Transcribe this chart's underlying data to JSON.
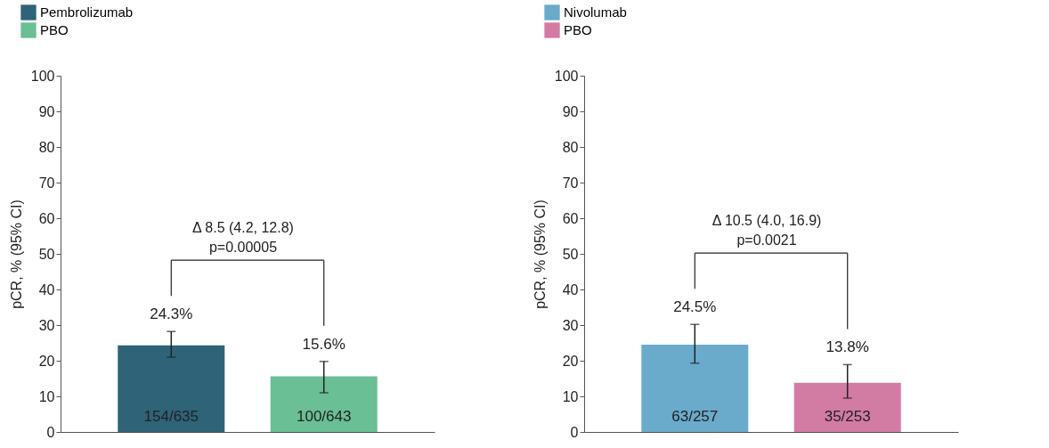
{
  "chart_data": [
    {
      "type": "bar",
      "categories": [
        null,
        null
      ],
      "ylabel": "pCR, % (95% CI)",
      "ylim": [
        0,
        100
      ],
      "yticks": [
        0,
        10,
        20,
        30,
        40,
        50,
        60,
        70,
        80,
        90,
        100
      ],
      "grid": false,
      "legend": "top left",
      "tick_labels": "y",
      "series": [
        {
          "name": "Pembrolizumab",
          "color": "#2e6378",
          "values": [
            24.3,
            null
          ],
          "errors": [
            [
              21.0,
              28.2
            ],
            null
          ],
          "value_labels": [
            "24.3%",
            null
          ]
        },
        {
          "name": "PBO",
          "color": "#6abf94",
          "values": [
            null,
            15.6
          ],
          "errors": [
            null,
            [
              11.0,
              19.8
            ]
          ],
          "value_labels": [
            null,
            "15.6%"
          ]
        }
      ],
      "annotations": [
        "Δ 8.5 (4.2, 12.8)",
        "p=0.00005",
        "154/635",
        "100/643"
      ]
    },
    {
      "type": "bar",
      "categories": [
        null,
        null
      ],
      "ylabel": "pCR, % (95% CI)",
      "ylim": [
        0,
        100
      ],
      "yticks": [
        0,
        10,
        20,
        30,
        40,
        50,
        60,
        70,
        80,
        90,
        100
      ],
      "grid": false,
      "legend": "top left",
      "tick_labels": "y",
      "series": [
        {
          "name": "Nivolumab",
          "color": "#6aaacb",
          "values": [
            24.5,
            null
          ],
          "errors": [
            [
              19.3,
              30.2
            ],
            null
          ],
          "value_labels": [
            "24.5%",
            null
          ]
        },
        {
          "name": "PBO",
          "color": "#d27ba3",
          "values": [
            null,
            13.8
          ],
          "errors": [
            null,
            [
              9.5,
              18.9
            ]
          ],
          "value_labels": [
            null,
            "13.8%"
          ]
        }
      ],
      "annotations": [
        "Δ 10.5 (4.0, 16.9)",
        "p=0.0021",
        "63/257",
        "35/253"
      ]
    }
  ]
}
